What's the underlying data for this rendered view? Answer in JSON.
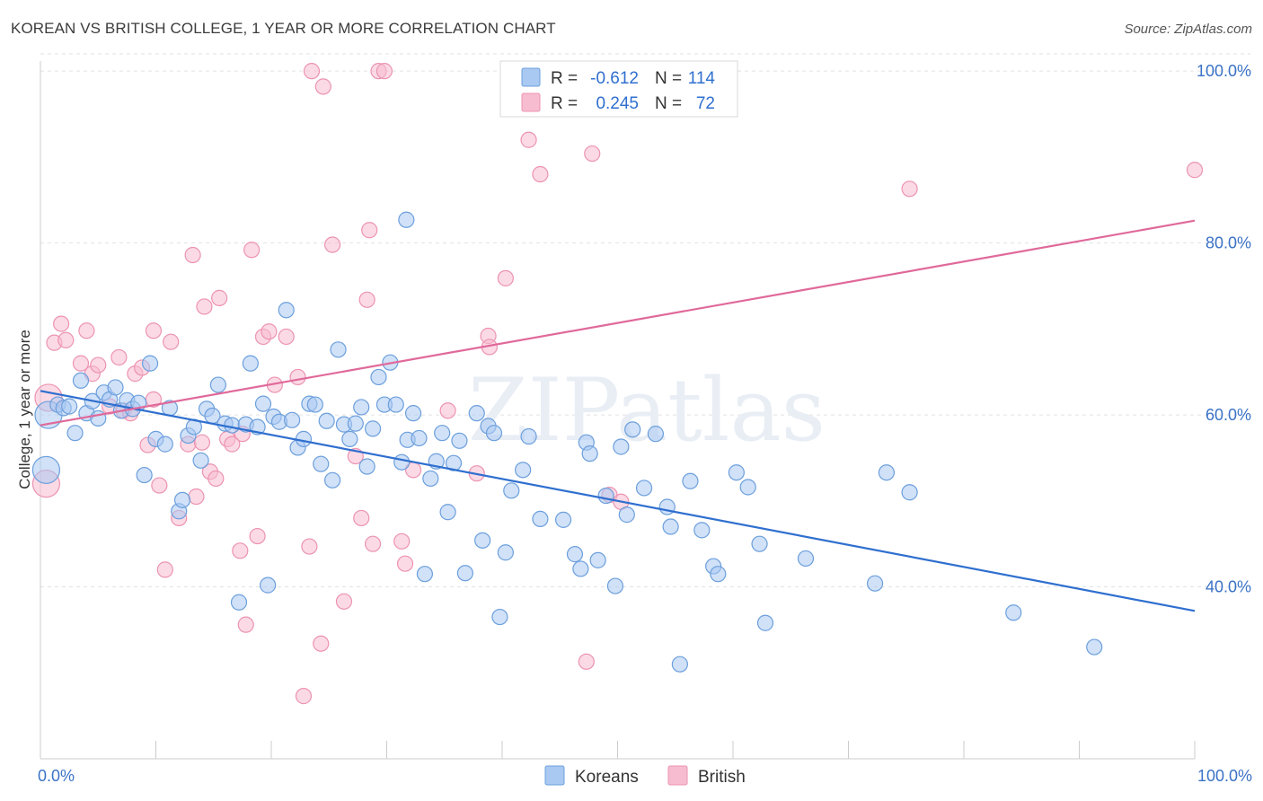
{
  "header": {
    "title": "KOREAN VS BRITISH COLLEGE, 1 YEAR OR MORE CORRELATION CHART",
    "source": "Source: ZipAtlas.com"
  },
  "watermark": "ZIPatlas",
  "chart_data": {
    "type": "scatter",
    "title": "KOREAN VS BRITISH COLLEGE, 1 YEAR OR MORE CORRELATION CHART",
    "xlabel": "",
    "ylabel": "College, 1 year or more",
    "xlim": [
      0,
      100
    ],
    "ylim": [
      20,
      102
    ],
    "x_tick_labels": [
      {
        "value": 0,
        "label": "0.0%"
      },
      {
        "value": 100,
        "label": "100.0%"
      }
    ],
    "y_tick_labels": [
      {
        "value": 40,
        "label": "40.0%"
      },
      {
        "value": 60,
        "label": "60.0%"
      },
      {
        "value": 80,
        "label": "80.0%"
      },
      {
        "value": 100,
        "label": "100.0%"
      }
    ],
    "grid": "horizontal dashed",
    "legend_position": "bottom-center",
    "colors": {
      "koreans_fill": "#a9c9f2",
      "koreans_stroke": "#6c9fdc",
      "koreans_line": "#2f6fcf",
      "british_fill": "#f7bcd0",
      "british_stroke": "#ec93b2",
      "british_line": "#e0699a"
    },
    "stats": [
      {
        "series": "Koreans",
        "r_label": "R =",
        "r": "-0.612",
        "n_label": "N =",
        "n": "114"
      },
      {
        "series": "British",
        "r_label": "R =",
        "r": "0.245",
        "n_label": "N =",
        "n": "72"
      }
    ],
    "series": [
      {
        "name": "Koreans",
        "trend": {
          "x": [
            0,
            100
          ],
          "y": [
            62.8,
            37.2
          ]
        },
        "points": [
          [
            0.5,
            53.6
          ],
          [
            0.7,
            60.0
          ],
          [
            1.5,
            61.2
          ],
          [
            2.0,
            60.8
          ],
          [
            2.5,
            61.0
          ],
          [
            3.0,
            57.9
          ],
          [
            3.5,
            64.0
          ],
          [
            4.0,
            60.2
          ],
          [
            4.5,
            61.6
          ],
          [
            5.0,
            59.6
          ],
          [
            5.5,
            62.6
          ],
          [
            6.0,
            61.8
          ],
          [
            6.5,
            63.2
          ],
          [
            7.0,
            60.5
          ],
          [
            7.5,
            61.7
          ],
          [
            8.0,
            60.7
          ],
          [
            8.5,
            61.4
          ],
          [
            9.0,
            53.0
          ],
          [
            9.5,
            66.0
          ],
          [
            10.0,
            57.2
          ],
          [
            10.8,
            56.6
          ],
          [
            11.2,
            60.8
          ],
          [
            12.0,
            48.8
          ],
          [
            12.3,
            50.1
          ],
          [
            12.8,
            57.6
          ],
          [
            13.3,
            58.6
          ],
          [
            13.9,
            54.7
          ],
          [
            14.4,
            60.7
          ],
          [
            14.9,
            59.9
          ],
          [
            15.4,
            63.5
          ],
          [
            16.0,
            59.0
          ],
          [
            16.6,
            58.8
          ],
          [
            17.2,
            38.2
          ],
          [
            17.8,
            58.9
          ],
          [
            18.2,
            66.0
          ],
          [
            18.8,
            58.6
          ],
          [
            19.3,
            61.3
          ],
          [
            19.7,
            40.2
          ],
          [
            20.2,
            59.8
          ],
          [
            20.7,
            59.2
          ],
          [
            21.3,
            72.2
          ],
          [
            21.8,
            59.4
          ],
          [
            22.3,
            56.2
          ],
          [
            22.8,
            57.2
          ],
          [
            23.3,
            61.3
          ],
          [
            23.8,
            61.2
          ],
          [
            24.3,
            54.3
          ],
          [
            24.8,
            59.3
          ],
          [
            25.3,
            52.4
          ],
          [
            25.8,
            67.6
          ],
          [
            26.3,
            58.9
          ],
          [
            26.8,
            57.2
          ],
          [
            27.3,
            59.0
          ],
          [
            27.8,
            60.9
          ],
          [
            28.3,
            54.0
          ],
          [
            28.8,
            58.4
          ],
          [
            29.3,
            64.4
          ],
          [
            29.8,
            61.2
          ],
          [
            30.3,
            66.1
          ],
          [
            30.8,
            61.2
          ],
          [
            31.3,
            54.5
          ],
          [
            31.8,
            57.1
          ],
          [
            32.3,
            60.2
          ],
          [
            32.8,
            57.3
          ],
          [
            33.3,
            41.5
          ],
          [
            33.8,
            52.6
          ],
          [
            34.3,
            54.6
          ],
          [
            34.8,
            57.9
          ],
          [
            35.3,
            48.7
          ],
          [
            35.8,
            54.4
          ],
          [
            36.3,
            57.0
          ],
          [
            36.8,
            41.6
          ],
          [
            37.8,
            60.2
          ],
          [
            38.3,
            45.4
          ],
          [
            38.8,
            58.7
          ],
          [
            39.3,
            57.9
          ],
          [
            39.8,
            36.5
          ],
          [
            40.3,
            44.0
          ],
          [
            40.8,
            51.2
          ],
          [
            41.8,
            53.6
          ],
          [
            42.3,
            57.5
          ],
          [
            43.3,
            47.9
          ],
          [
            45.3,
            47.8
          ],
          [
            46.3,
            43.8
          ],
          [
            46.8,
            42.1
          ],
          [
            47.3,
            56.8
          ],
          [
            47.6,
            55.5
          ],
          [
            48.3,
            43.1
          ],
          [
            49.0,
            50.6
          ],
          [
            49.8,
            40.1
          ],
          [
            50.3,
            56.3
          ],
          [
            50.8,
            48.4
          ],
          [
            51.3,
            58.3
          ],
          [
            52.3,
            51.5
          ],
          [
            53.3,
            57.8
          ],
          [
            54.3,
            49.3
          ],
          [
            54.6,
            47.0
          ],
          [
            55.4,
            31.0
          ],
          [
            56.3,
            52.3
          ],
          [
            57.3,
            46.6
          ],
          [
            58.3,
            42.4
          ],
          [
            58.7,
            41.5
          ],
          [
            60.3,
            53.3
          ],
          [
            61.3,
            51.6
          ],
          [
            62.3,
            45.0
          ],
          [
            62.8,
            35.8
          ],
          [
            66.3,
            43.3
          ],
          [
            72.3,
            40.4
          ],
          [
            73.3,
            53.3
          ],
          [
            75.3,
            51.0
          ],
          [
            84.3,
            37.0
          ],
          [
            91.3,
            33.0
          ],
          [
            31.7,
            82.7
          ]
        ]
      },
      {
        "name": "British",
        "trend": {
          "x": [
            0,
            100
          ],
          "y": [
            58.8,
            82.6
          ]
        },
        "points": [
          [
            0.5,
            52.0
          ],
          [
            0.7,
            62.0
          ],
          [
            1.2,
            68.4
          ],
          [
            1.8,
            70.6
          ],
          [
            2.2,
            68.7
          ],
          [
            3.5,
            66.0
          ],
          [
            4.0,
            69.8
          ],
          [
            4.5,
            64.8
          ],
          [
            5.0,
            65.8
          ],
          [
            6.0,
            61.0
          ],
          [
            6.8,
            66.7
          ],
          [
            7.2,
            60.5
          ],
          [
            7.8,
            60.2
          ],
          [
            8.2,
            64.8
          ],
          [
            8.8,
            65.5
          ],
          [
            9.3,
            56.5
          ],
          [
            9.8,
            69.8
          ],
          [
            10.3,
            51.8
          ],
          [
            10.8,
            42.0
          ],
          [
            11.3,
            68.5
          ],
          [
            12.0,
            48.0
          ],
          [
            12.8,
            56.6
          ],
          [
            13.2,
            78.6
          ],
          [
            13.5,
            50.5
          ],
          [
            14.2,
            72.6
          ],
          [
            14.7,
            53.4
          ],
          [
            15.2,
            52.6
          ],
          [
            15.5,
            73.6
          ],
          [
            16.2,
            57.2
          ],
          [
            16.6,
            56.6
          ],
          [
            17.3,
            44.2
          ],
          [
            17.8,
            35.6
          ],
          [
            18.3,
            79.2
          ],
          [
            18.8,
            45.9
          ],
          [
            19.3,
            69.1
          ],
          [
            19.8,
            69.7
          ],
          [
            20.3,
            63.5
          ],
          [
            21.3,
            69.1
          ],
          [
            22.3,
            64.4
          ],
          [
            22.8,
            27.3
          ],
          [
            23.3,
            44.7
          ],
          [
            23.5,
            100.0
          ],
          [
            24.3,
            33.4
          ],
          [
            24.5,
            98.2
          ],
          [
            25.3,
            79.8
          ],
          [
            26.3,
            38.3
          ],
          [
            27.3,
            55.2
          ],
          [
            28.3,
            73.4
          ],
          [
            28.5,
            81.5
          ],
          [
            28.8,
            45.0
          ],
          [
            29.3,
            100.0
          ],
          [
            29.8,
            100.0
          ],
          [
            31.3,
            45.3
          ],
          [
            31.6,
            42.7
          ],
          [
            32.3,
            53.6
          ],
          [
            35.3,
            60.5
          ],
          [
            37.8,
            53.2
          ],
          [
            38.8,
            69.2
          ],
          [
            38.9,
            67.9
          ],
          [
            40.3,
            75.9
          ],
          [
            42.3,
            92.0
          ],
          [
            43.3,
            88.0
          ],
          [
            47.3,
            31.3
          ],
          [
            47.8,
            90.4
          ],
          [
            49.3,
            50.7
          ],
          [
            50.3,
            49.9
          ],
          [
            75.3,
            86.3
          ],
          [
            100.0,
            88.5
          ],
          [
            14.0,
            56.8
          ],
          [
            9.8,
            61.8
          ],
          [
            17.5,
            57.8
          ],
          [
            27.8,
            48.0
          ]
        ]
      }
    ]
  }
}
